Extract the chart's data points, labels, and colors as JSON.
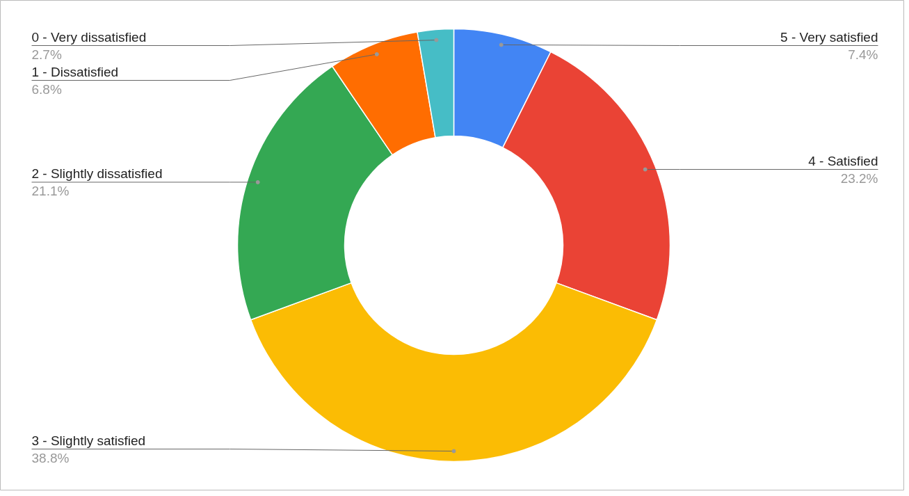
{
  "chart_data": {
    "type": "donut",
    "categories": [
      "5 - Very satisfied",
      "4 - Satisfied",
      "3 - Slightly satisfied",
      "2 - Slightly dissatisfied",
      "1 - Dissatisfied",
      "0 - Very dissatisfied"
    ],
    "values": [
      7.4,
      23.2,
      38.8,
      21.1,
      6.8,
      2.7
    ],
    "colors": [
      "#4285f4",
      "#ea4335",
      "#fbbc04",
      "#34a853",
      "#ff6d01",
      "#46bdc6"
    ],
    "value_labels": [
      "7.4%",
      "23.2%",
      "38.8%",
      "21.1%",
      "6.8%",
      "2.7%"
    ]
  }
}
